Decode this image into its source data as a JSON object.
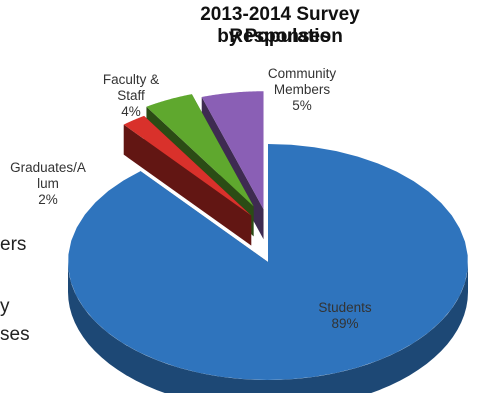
{
  "chart_data": {
    "type": "pie",
    "title_lines": [
      "2013-2014 Survey Responses",
      "by Population"
    ],
    "slices": [
      {
        "label_lines": [
          "Students",
          "89%"
        ],
        "value": 89,
        "color": "#2f74bd"
      },
      {
        "label_lines": [
          "Graduates/A",
          "lum",
          "2%"
        ],
        "value": 2,
        "color": "#d9312b"
      },
      {
        "label_lines": [
          "Faculty &",
          "Staff",
          "4%"
        ],
        "value": 4,
        "color": "#5fa82e"
      },
      {
        "label_lines": [
          "Community",
          "Members",
          "5%"
        ],
        "value": 5,
        "color": "#8a5fb5"
      }
    ],
    "exploded": true,
    "three_d": true
  },
  "side_text": [
    "ers",
    "y",
    "ses"
  ]
}
